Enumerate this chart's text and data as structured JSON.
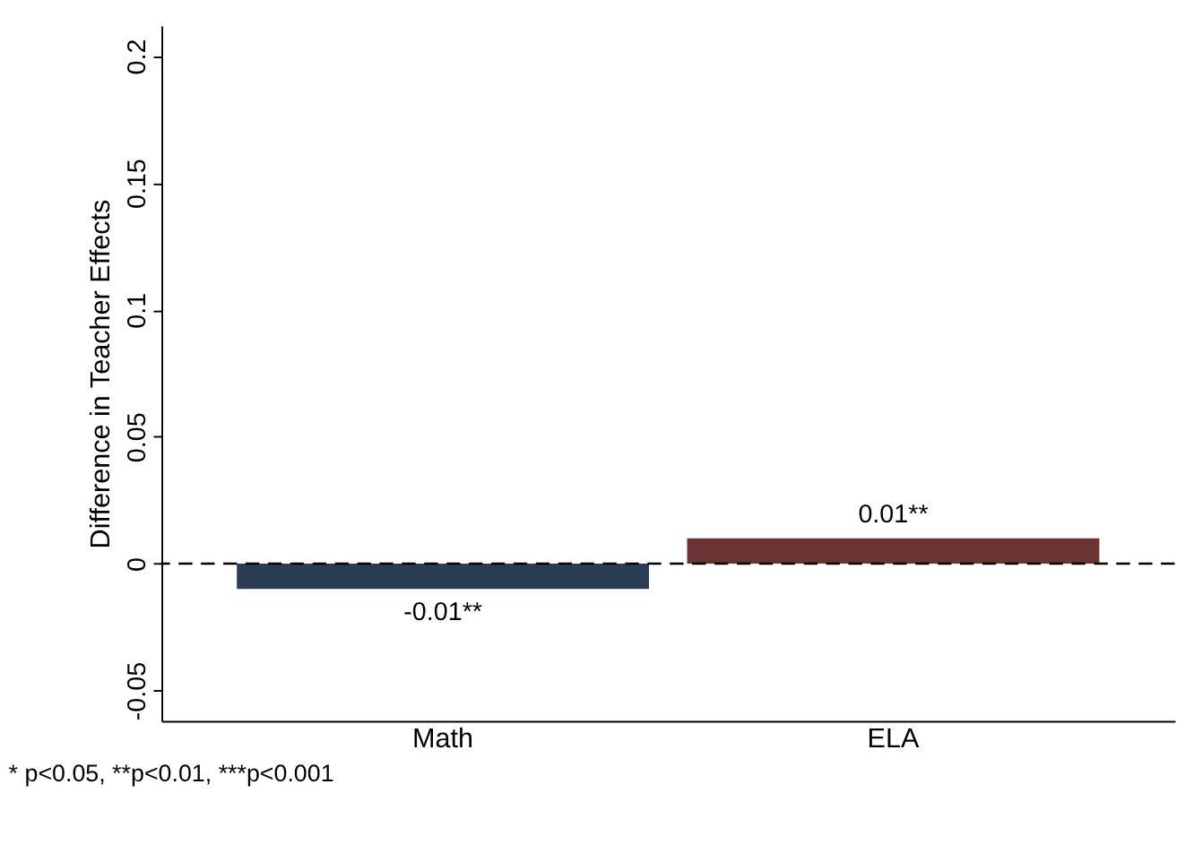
{
  "chart_data": {
    "type": "bar",
    "ylabel": "Difference in Teacher Effects",
    "categories": [
      "Math",
      "ELA"
    ],
    "values": [
      -0.01,
      0.01
    ],
    "colors": [
      "#2b3d55",
      "#6b3434"
    ],
    "value_labels": [
      "-0.01**",
      "0.01**"
    ],
    "ylim": [
      -0.062,
      0.212
    ],
    "yticks": [
      -0.05,
      0,
      0.05,
      0.1,
      0.15,
      0.2
    ],
    "ref_lines": [
      {
        "axis": "y",
        "value": 0,
        "color": "#000000",
        "line_style": "dashed"
      }
    ],
    "annotations": [
      "* p<0.05, **p<0.01, ***p<0.001"
    ],
    "grid": false
  }
}
